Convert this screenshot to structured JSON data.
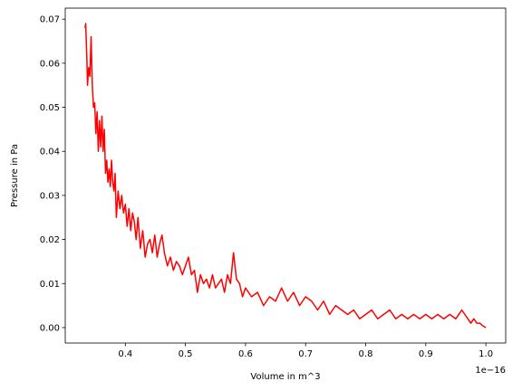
{
  "chart_data": {
    "type": "line",
    "title": "",
    "xlabel": "Volume in m^3",
    "ylabel": "Pressure in Pa",
    "x_offset_label": "1e−16",
    "x_ticks": [
      0.4,
      0.5,
      0.6,
      0.7,
      0.8,
      0.9,
      1.0
    ],
    "x_tick_labels": [
      "0.4",
      "0.5",
      "0.6",
      "0.7",
      "0.8",
      "0.9",
      "1.0"
    ],
    "y_ticks": [
      0.0,
      0.01,
      0.02,
      0.03,
      0.04,
      0.05,
      0.06,
      0.07
    ],
    "y_tick_labels": [
      "0.00",
      "0.01",
      "0.02",
      "0.03",
      "0.04",
      "0.05",
      "0.06",
      "0.07"
    ],
    "xlim": [
      0.3,
      1.033
    ],
    "ylim": [
      -0.0035,
      0.0725
    ],
    "grid": false,
    "series": [
      {
        "color": "#ff0000",
        "x": [
          0.333,
          0.334,
          0.336,
          0.337,
          0.339,
          0.341,
          0.343,
          0.345,
          0.347,
          0.349,
          0.351,
          0.353,
          0.355,
          0.357,
          0.359,
          0.361,
          0.363,
          0.365,
          0.367,
          0.369,
          0.371,
          0.373,
          0.375,
          0.377,
          0.379,
          0.381,
          0.383,
          0.385,
          0.388,
          0.391,
          0.394,
          0.397,
          0.4,
          0.403,
          0.406,
          0.409,
          0.412,
          0.415,
          0.418,
          0.421,
          0.425,
          0.429,
          0.433,
          0.437,
          0.441,
          0.445,
          0.449,
          0.453,
          0.457,
          0.461,
          0.465,
          0.47,
          0.475,
          0.48,
          0.485,
          0.49,
          0.495,
          0.5,
          0.505,
          0.51,
          0.515,
          0.52,
          0.525,
          0.53,
          0.535,
          0.54,
          0.545,
          0.55,
          0.555,
          0.56,
          0.565,
          0.57,
          0.575,
          0.58,
          0.585,
          0.59,
          0.595,
          0.6,
          0.61,
          0.62,
          0.63,
          0.64,
          0.65,
          0.66,
          0.67,
          0.68,
          0.69,
          0.7,
          0.71,
          0.72,
          0.73,
          0.74,
          0.75,
          0.76,
          0.77,
          0.78,
          0.79,
          0.8,
          0.81,
          0.82,
          0.83,
          0.84,
          0.85,
          0.86,
          0.87,
          0.88,
          0.89,
          0.9,
          0.91,
          0.92,
          0.93,
          0.94,
          0.95,
          0.96,
          0.965,
          0.97,
          0.975,
          0.98,
          0.985,
          0.99,
          0.995,
          1.0
        ],
        "y": [
          0.068,
          0.069,
          0.061,
          0.055,
          0.059,
          0.057,
          0.066,
          0.055,
          0.05,
          0.051,
          0.044,
          0.049,
          0.04,
          0.047,
          0.041,
          0.048,
          0.04,
          0.045,
          0.035,
          0.038,
          0.033,
          0.036,
          0.032,
          0.038,
          0.033,
          0.031,
          0.035,
          0.025,
          0.031,
          0.027,
          0.03,
          0.026,
          0.028,
          0.023,
          0.027,
          0.022,
          0.026,
          0.024,
          0.02,
          0.025,
          0.018,
          0.022,
          0.016,
          0.019,
          0.02,
          0.017,
          0.021,
          0.016,
          0.019,
          0.021,
          0.017,
          0.014,
          0.016,
          0.013,
          0.015,
          0.014,
          0.012,
          0.014,
          0.016,
          0.012,
          0.013,
          0.008,
          0.012,
          0.01,
          0.011,
          0.009,
          0.012,
          0.009,
          0.01,
          0.011,
          0.008,
          0.012,
          0.01,
          0.017,
          0.011,
          0.01,
          0.007,
          0.009,
          0.007,
          0.008,
          0.005,
          0.007,
          0.006,
          0.009,
          0.006,
          0.008,
          0.005,
          0.007,
          0.006,
          0.004,
          0.006,
          0.003,
          0.005,
          0.004,
          0.003,
          0.004,
          0.002,
          0.003,
          0.004,
          0.002,
          0.003,
          0.004,
          0.002,
          0.003,
          0.002,
          0.003,
          0.002,
          0.003,
          0.002,
          0.003,
          0.002,
          0.003,
          0.002,
          0.004,
          0.003,
          0.002,
          0.001,
          0.002,
          0.001,
          0.001,
          0.0004,
          0.0
        ]
      }
    ]
  }
}
